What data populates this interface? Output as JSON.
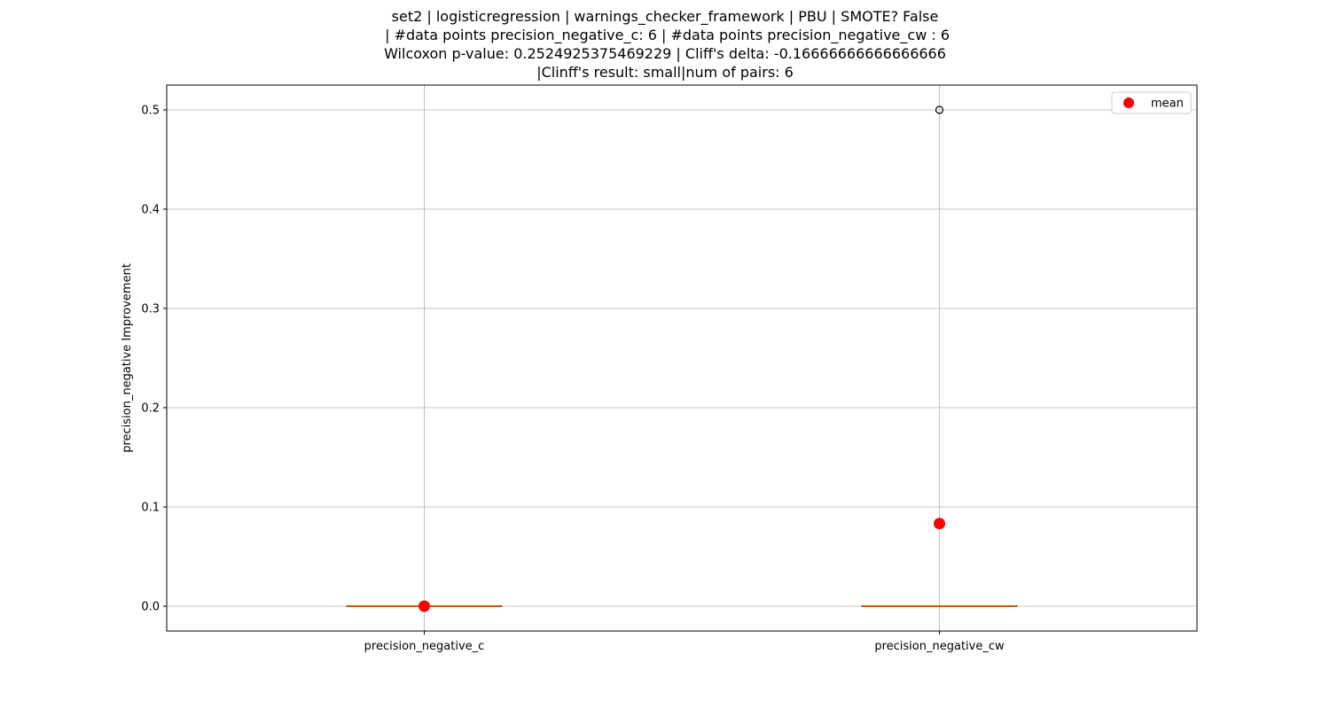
{
  "chart_data": {
    "type": "box",
    "title_lines": [
      "set2 | logisticregression | warnings_checker_framework | PBU | SMOTE? False",
      " | #data points precision_negative_c: 6 | #data points precision_negative_cw : 6",
      "Wilcoxon p-value: 0.2524925375469229 | Cliff's delta: -0.16666666666666666",
      "|Clinff's result: small|num of pairs: 6"
    ],
    "ylabel": "precision_negative Improvement",
    "xlabel": "",
    "ylim": [
      -0.025,
      0.525
    ],
    "yticks": [
      0.0,
      0.1,
      0.2,
      0.3,
      0.4,
      0.5
    ],
    "ytick_labels": [
      "0.0",
      "0.1",
      "0.2",
      "0.3",
      "0.4",
      "0.5"
    ],
    "grid": true,
    "legend": {
      "placement": "top-right",
      "entries": [
        {
          "label": "mean",
          "color": "#ff0000"
        }
      ]
    },
    "categories": [
      "precision_negative_c",
      "precision_negative_cw"
    ],
    "boxes": [
      {
        "name": "precision_negative_c",
        "q1": 0.0,
        "median": 0.0,
        "q3": 0.0,
        "whisker_low": 0.0,
        "whisker_high": 0.0,
        "mean": 0.0,
        "outliers": []
      },
      {
        "name": "precision_negative_cw",
        "q1": 0.0,
        "median": 0.0,
        "q3": 0.0,
        "whisker_low": 0.0,
        "whisker_high": 0.0,
        "mean": 0.0833,
        "outliers": [
          0.5
        ]
      }
    ],
    "colors": {
      "mean": "#ff0000",
      "median": "#ff7f0e",
      "box": "#000000",
      "grid": "#b0b0b0"
    }
  }
}
